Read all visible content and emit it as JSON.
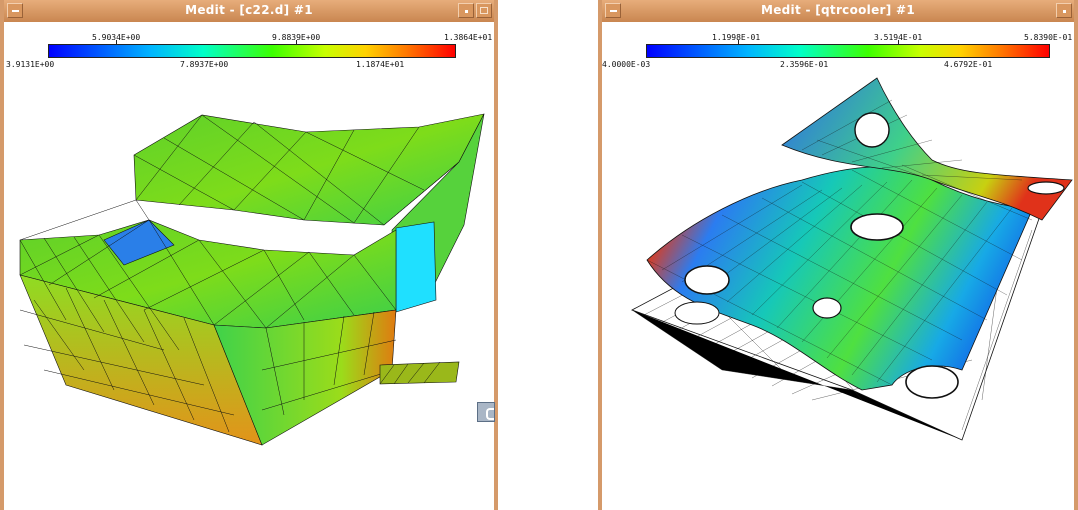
{
  "window1": {
    "title": "Medit - [c22.d] #1",
    "scale_top": [
      "5.9034E+00",
      "9.8839E+00",
      "1.3864E+01"
    ],
    "scale_bottom": [
      "3.9131E+00",
      "7.8937E+00",
      "1.1874E+01"
    ]
  },
  "window2": {
    "title": "Medit - [qtrcooler] #1",
    "scale_top": [
      "1.1998E-01",
      "3.5194E-01",
      "5.8390E-01"
    ],
    "scale_bottom": [
      "4.0000E-03",
      "2.3596E-01",
      "4.6792E-01"
    ]
  },
  "colormap": [
    "#0000ff",
    "#00b4ff",
    "#00ffc8",
    "#3cff00",
    "#c8ff00",
    "#ffd200",
    "#ff7800",
    "#ff0000"
  ],
  "icons": {
    "minimize": "minimize-icon",
    "menu": "menu-dot-icon",
    "maximize": "maximize-icon"
  }
}
